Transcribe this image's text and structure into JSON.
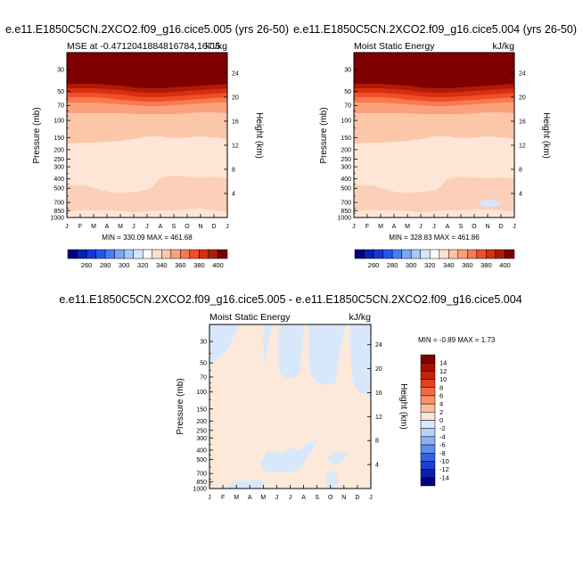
{
  "chart_data": [
    {
      "type": "heatmap",
      "title": "e.e11.E1850C5CN.2XCO2.f09_g16.cice5.005 (yrs 26-50)",
      "subtitle_left": "MSE at -0.4712041884816784,167.5",
      "subtitle_right": "kJ/kg",
      "ylabel": "Pressure (mb)",
      "ylabel_right": "Height (km)",
      "x": [
        "J",
        "F",
        "M",
        "A",
        "M",
        "J",
        "J",
        "A",
        "S",
        "O",
        "N",
        "D",
        "J"
      ],
      "y_ticks": [
        "30",
        "50",
        "70",
        "100",
        "150",
        "200",
        "250",
        "300",
        "400",
        "500",
        "700",
        "850",
        "1000"
      ],
      "y_right_ticks": [
        "24",
        "20",
        "16",
        "12",
        "8",
        "4"
      ],
      "ylim": [
        1000,
        20
      ],
      "stats": "MIN = 330.09  MAX = 461.68",
      "colorbar_labels": [
        "260",
        "280",
        "300",
        "320",
        "340",
        "360",
        "380",
        "400"
      ]
    },
    {
      "type": "heatmap",
      "title": "e.e11.E1850C5CN.2XCO2.f09_g16.cice5.004 (yrs 26-50)",
      "subtitle_left": "Moist Static Energy",
      "subtitle_right": "kJ/kg",
      "ylabel": "Pressure (mb)",
      "ylabel_right": "Height (km)",
      "x": [
        "J",
        "F",
        "M",
        "A",
        "M",
        "J",
        "J",
        "A",
        "S",
        "O",
        "N",
        "D",
        "J"
      ],
      "y_ticks": [
        "30",
        "50",
        "70",
        "100",
        "150",
        "200",
        "250",
        "300",
        "400",
        "500",
        "700",
        "850",
        "1000"
      ],
      "y_right_ticks": [
        "24",
        "20",
        "16",
        "12",
        "8",
        "4"
      ],
      "ylim": [
        1000,
        20
      ],
      "stats": "MIN = 328.83  MAX = 461.86",
      "colorbar_labels": [
        "260",
        "280",
        "300",
        "320",
        "340",
        "360",
        "380",
        "400"
      ]
    },
    {
      "type": "heatmap",
      "title": "e.e11.E1850C5CN.2XCO2.f09_g16.cice5.005 - e.e11.E1850C5CN.2XCO2.f09_g16.cice5.004",
      "subtitle_left": "Moist Static Energy",
      "subtitle_right": "kJ/kg",
      "ylabel": "Pressure (mb)",
      "ylabel_right": "Height (km)",
      "x": [
        "J",
        "F",
        "M",
        "A",
        "M",
        "J",
        "J",
        "A",
        "S",
        "O",
        "N",
        "D",
        "J"
      ],
      "y_ticks": [
        "30",
        "50",
        "70",
        "100",
        "150",
        "200",
        "250",
        "300",
        "400",
        "500",
        "700",
        "850",
        "1000"
      ],
      "y_right_ticks": [
        "24",
        "20",
        "16",
        "12",
        "8",
        "4"
      ],
      "ylim": [
        1000,
        20
      ],
      "stats": "MIN =  -0.89 MAX =   1.73",
      "colorbar_labels": [
        "14",
        "12",
        "10",
        "8",
        "6",
        "4",
        "2",
        "0",
        "-2",
        "-4",
        "-6",
        "-8",
        "-10",
        "-12",
        "-14"
      ]
    }
  ],
  "colors": {
    "abs_scale": [
      "#000080",
      "#0a1fb8",
      "#1436d8",
      "#2656f0",
      "#4a7ef5",
      "#7aa6f8",
      "#aac8fb",
      "#d6e6fc",
      "#ffffff",
      "#fde0cc",
      "#fcc6a8",
      "#fba27c",
      "#f77a50",
      "#ef4f28",
      "#d92e10",
      "#b01a06",
      "#7f0000"
    ],
    "diff_scale": [
      "#7f0000",
      "#a50f04",
      "#c8220a",
      "#e2401a",
      "#f26a3e",
      "#f8946a",
      "#fbbd98",
      "#fde6d6",
      "#d8e8fb",
      "#b6d0f8",
      "#8cb0f4",
      "#5f8cee",
      "#3362e4",
      "#1a3fd2",
      "#0a1fb0",
      "#000080"
    ]
  }
}
